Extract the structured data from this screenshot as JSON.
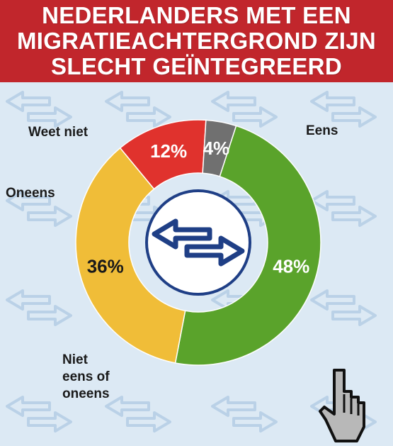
{
  "title_lines": [
    "NEDERLANDERS MET EEN",
    "MIGRATIEACHTERGROND ZIJN",
    "SLECHT GEÏNTEGREERD"
  ],
  "colors": {
    "header": "#c1262c",
    "background": "#dce9f4",
    "center_icon": "#1f3f86"
  },
  "chart_data": {
    "type": "pie",
    "style": "donut",
    "title": "NEDERLANDERS MET EEN MIGRATIEACHTERGROND ZIJN SLECHT GEÏNTEGREERD",
    "slices": [
      {
        "label": [
          "Eens"
        ],
        "value": 48,
        "value_label": "48%",
        "color": "#5aa32b",
        "value_color": "#ffffff"
      },
      {
        "label": [
          "Niet",
          "eens of",
          "oneens"
        ],
        "value": 36,
        "value_label": "36%",
        "color": "#f0bd38",
        "value_color": "#1a1a1a"
      },
      {
        "label": [
          "Oneens"
        ],
        "value": 12,
        "value_label": "12%",
        "color": "#e0322d",
        "value_color": "#ffffff"
      },
      {
        "label": [
          "Weet niet"
        ],
        "value": 4,
        "value_label": "4%",
        "color": "#707070",
        "value_color": "#ffffff"
      }
    ],
    "legend": "none",
    "center_icon": "double-arrow-icon"
  }
}
